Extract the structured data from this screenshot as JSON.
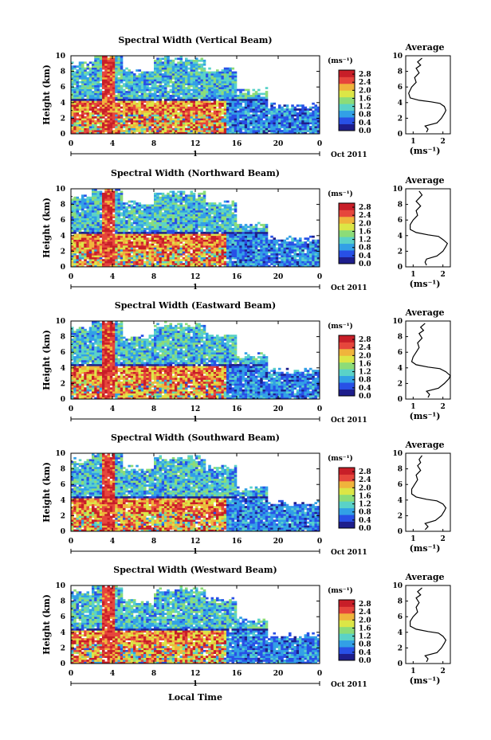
{
  "chart_data": {
    "type": "heatmap",
    "colorbar": {
      "unit_label": "(ms⁻¹)",
      "ticks": [
        "2.8",
        "2.4",
        "2.0",
        "1.6",
        "1.2",
        "0.8",
        "0.4",
        "0.0"
      ],
      "range": [
        0,
        3
      ],
      "colors": [
        "#1e1e8c",
        "#2850e6",
        "#32a0e6",
        "#5ad2c8",
        "#8cdc78",
        "#dce646",
        "#f0b43c",
        "#e6463c",
        "#c81e28"
      ]
    },
    "shared": {
      "x_ticks": [
        "0",
        "4",
        "8",
        "12",
        "16",
        "20",
        "0"
      ],
      "y_ticks": [
        "0",
        "2",
        "4",
        "6",
        "8",
        "10"
      ],
      "xlim": [
        0,
        24
      ],
      "ylim": [
        0,
        10
      ],
      "ylabel": "Height (km)",
      "date_marker": "1",
      "date_label": "Oct 2011",
      "xlabel": "Local Time",
      "avg_title": "Average",
      "avg_xticks": [
        "1",
        "2"
      ],
      "avg_xlabel": "(ms⁻¹)",
      "avg_ylim": [
        0,
        10
      ]
    },
    "panels": [
      {
        "title": "Spectral Width (Vertical Beam)",
        "profile": [
          [
            0.2,
            1.45
          ],
          [
            0.6,
            1.5
          ],
          [
            1.0,
            1.4
          ],
          [
            1.4,
            1.8
          ],
          [
            2.0,
            1.95
          ],
          [
            2.6,
            2.05
          ],
          [
            3.0,
            2.1
          ],
          [
            3.5,
            2.05
          ],
          [
            3.9,
            1.9
          ],
          [
            4.1,
            1.6
          ],
          [
            4.3,
            1.2
          ],
          [
            4.6,
            0.9
          ],
          [
            5.2,
            0.85
          ],
          [
            6.0,
            0.95
          ],
          [
            6.6,
            1.1
          ],
          [
            7.2,
            1.05
          ],
          [
            7.8,
            1.2
          ],
          [
            8.4,
            1.1
          ],
          [
            8.8,
            1.25
          ],
          [
            9.2,
            1.15
          ],
          [
            9.7,
            1.3
          ]
        ]
      },
      {
        "title": "Spectral Width (Northward Beam)",
        "profile": [
          [
            0.2,
            1.45
          ],
          [
            0.6,
            1.4
          ],
          [
            1.0,
            1.45
          ],
          [
            1.4,
            1.8
          ],
          [
            2.0,
            2.0
          ],
          [
            2.6,
            2.1
          ],
          [
            3.0,
            2.15
          ],
          [
            3.5,
            2.0
          ],
          [
            3.9,
            1.85
          ],
          [
            4.1,
            1.5
          ],
          [
            4.4,
            1.1
          ],
          [
            4.8,
            0.9
          ],
          [
            5.4,
            0.9
          ],
          [
            6.0,
            1.0
          ],
          [
            6.6,
            1.15
          ],
          [
            7.2,
            1.1
          ],
          [
            7.8,
            1.25
          ],
          [
            8.4,
            1.1
          ],
          [
            8.8,
            1.2
          ],
          [
            9.2,
            1.3
          ],
          [
            9.7,
            1.2
          ]
        ]
      },
      {
        "title": "Spectral Width (Eastward Beam)",
        "profile": [
          [
            0.2,
            1.5
          ],
          [
            0.6,
            1.55
          ],
          [
            1.0,
            1.45
          ],
          [
            1.4,
            1.85
          ],
          [
            2.0,
            2.05
          ],
          [
            2.6,
            2.2
          ],
          [
            3.0,
            2.25
          ],
          [
            3.5,
            2.1
          ],
          [
            3.9,
            1.9
          ],
          [
            4.1,
            1.5
          ],
          [
            4.4,
            1.1
          ],
          [
            4.8,
            0.95
          ],
          [
            5.4,
            1.0
          ],
          [
            6.0,
            1.1
          ],
          [
            6.6,
            1.2
          ],
          [
            7.2,
            1.15
          ],
          [
            7.8,
            1.3
          ],
          [
            8.4,
            1.2
          ],
          [
            8.8,
            1.35
          ],
          [
            9.2,
            1.25
          ],
          [
            9.7,
            1.4
          ]
        ]
      },
      {
        "title": "Spectral Width (Southward Beam)",
        "profile": [
          [
            0.2,
            1.4
          ],
          [
            0.6,
            1.5
          ],
          [
            1.0,
            1.4
          ],
          [
            1.4,
            1.75
          ],
          [
            2.0,
            1.95
          ],
          [
            2.6,
            2.05
          ],
          [
            3.0,
            2.1
          ],
          [
            3.5,
            2.0
          ],
          [
            3.9,
            1.8
          ],
          [
            4.1,
            1.45
          ],
          [
            4.4,
            1.1
          ],
          [
            4.8,
            0.95
          ],
          [
            5.4,
            0.95
          ],
          [
            6.0,
            1.05
          ],
          [
            6.6,
            1.15
          ],
          [
            7.2,
            1.1
          ],
          [
            7.8,
            1.25
          ],
          [
            8.4,
            1.15
          ],
          [
            8.8,
            1.25
          ],
          [
            9.2,
            1.2
          ],
          [
            9.7,
            1.3
          ]
        ]
      },
      {
        "title": "Spectral Width (Westward Beam)",
        "profile": [
          [
            0.2,
            1.45
          ],
          [
            0.6,
            1.5
          ],
          [
            1.0,
            1.4
          ],
          [
            1.4,
            1.8
          ],
          [
            2.0,
            1.95
          ],
          [
            2.6,
            2.05
          ],
          [
            3.0,
            2.1
          ],
          [
            3.5,
            2.0
          ],
          [
            3.9,
            1.85
          ],
          [
            4.1,
            1.5
          ],
          [
            4.4,
            1.1
          ],
          [
            4.8,
            0.9
          ],
          [
            5.4,
            0.9
          ],
          [
            6.0,
            1.0
          ],
          [
            6.6,
            1.15
          ],
          [
            7.2,
            1.1
          ],
          [
            7.8,
            1.2
          ],
          [
            8.4,
            1.1
          ],
          [
            8.8,
            1.25
          ],
          [
            9.2,
            1.15
          ],
          [
            9.7,
            1.3
          ]
        ]
      }
    ]
  }
}
